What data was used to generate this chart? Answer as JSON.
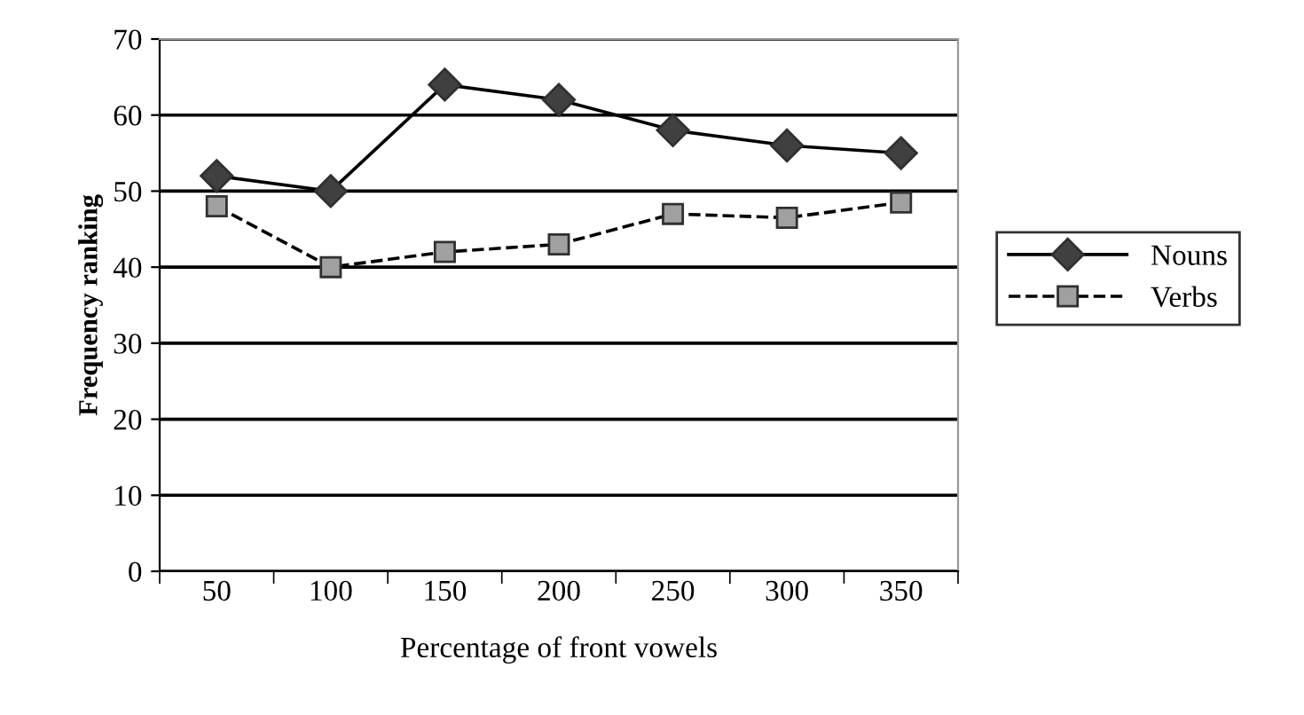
{
  "chart_data": {
    "type": "line",
    "xlabel": "Percentage of front vowels",
    "ylabel": "Frequency ranking",
    "categories": [
      "50",
      "100",
      "150",
      "200",
      "250",
      "300",
      "350"
    ],
    "series": [
      {
        "name": "Nouns",
        "color": "#404040",
        "values": [
          52,
          50,
          64,
          62,
          58,
          56,
          55
        ],
        "marker": "diamond",
        "line_style": "solid"
      },
      {
        "name": "Verbs",
        "color": "#a0a0a0",
        "values": [
          48,
          40,
          42,
          43,
          47,
          46.5,
          48.5
        ],
        "marker": "square",
        "line_style": "dashed"
      }
    ],
    "ylim": [
      0,
      70
    ],
    "yticks": [
      0,
      10,
      20,
      30,
      40,
      50,
      60,
      70
    ],
    "grid": "y",
    "legend": "right"
  }
}
